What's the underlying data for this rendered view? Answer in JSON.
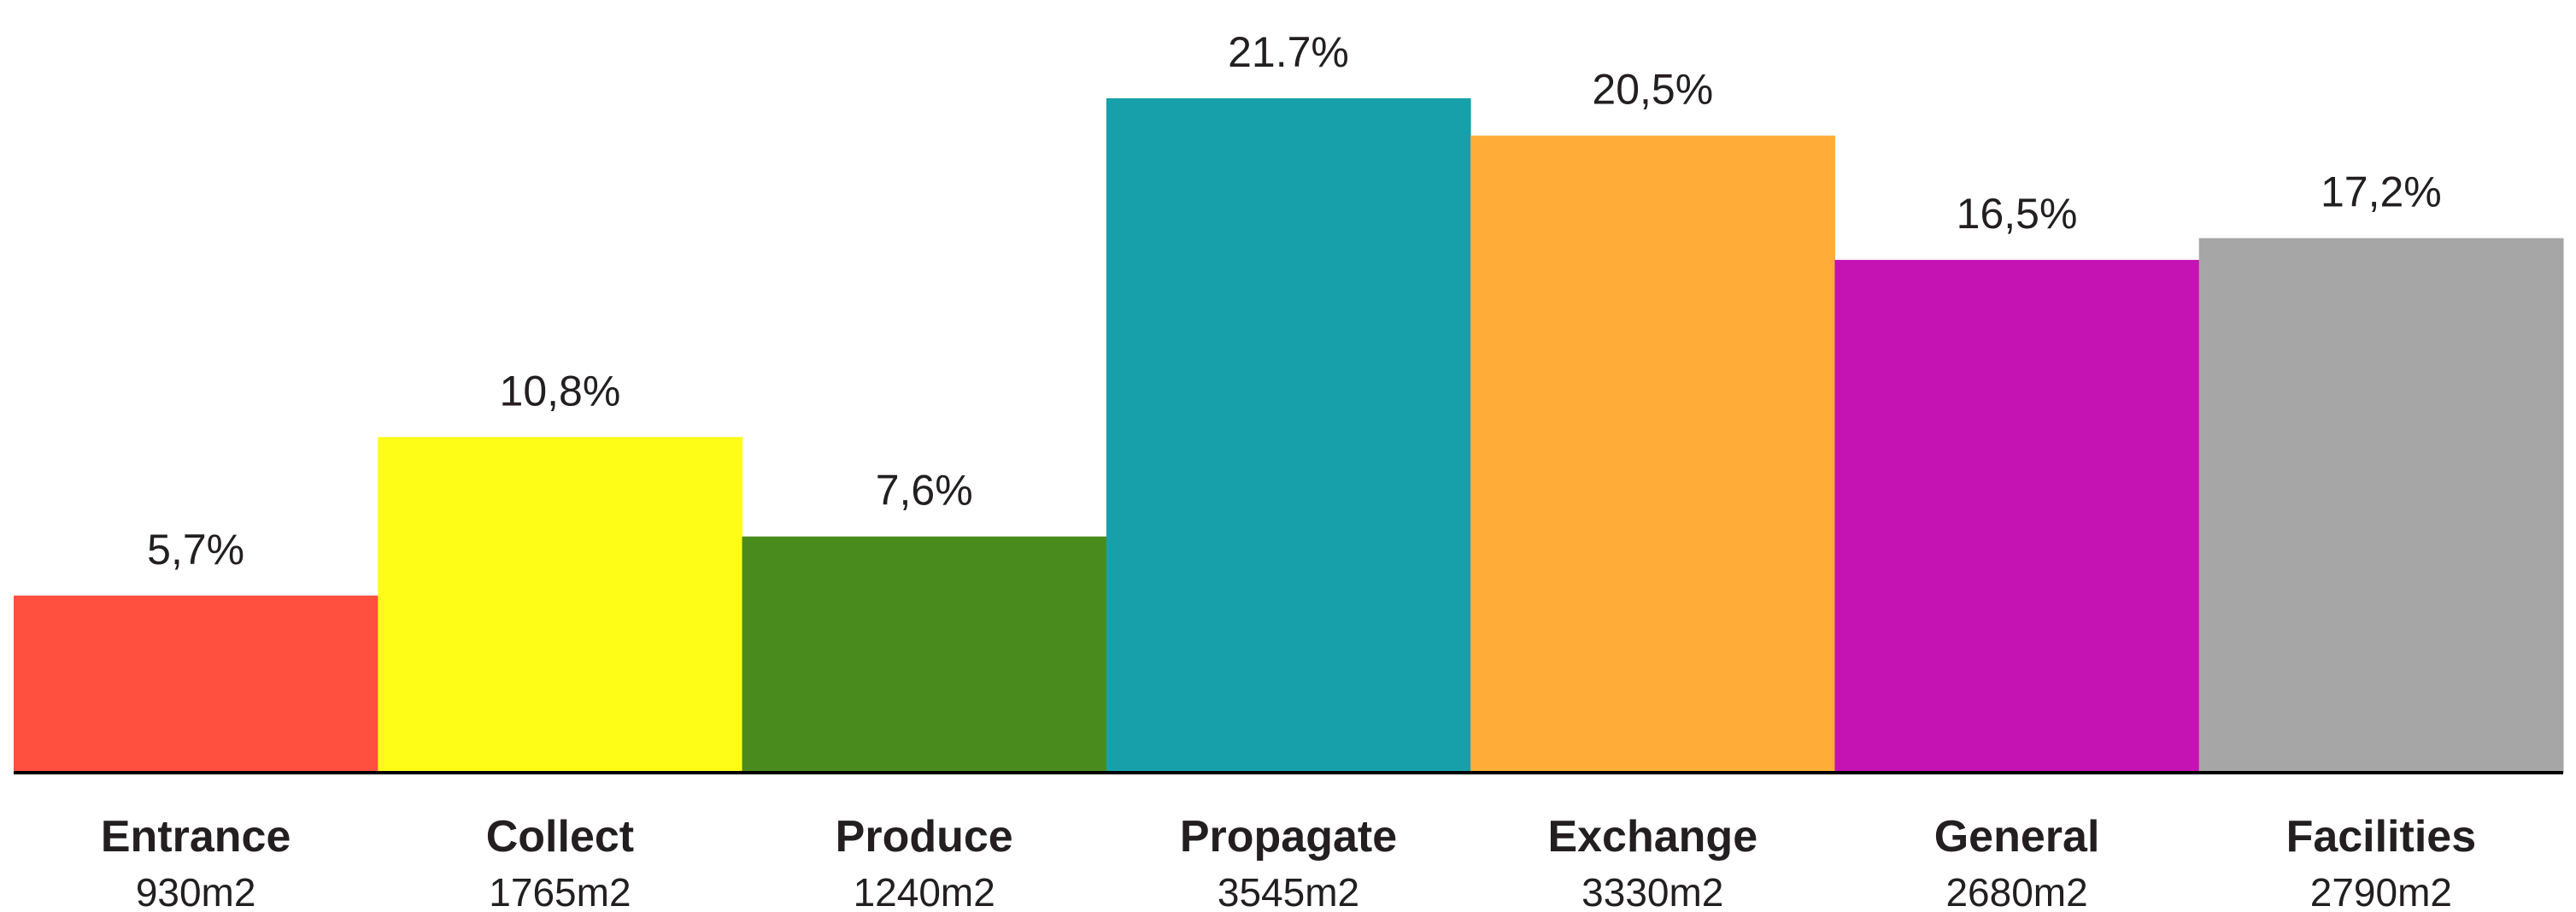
{
  "chart_data": {
    "type": "bar",
    "title": "",
    "xlabel": "",
    "ylabel": "",
    "unit": "%",
    "ylim": [
      0,
      21.7
    ],
    "grid": false,
    "legend": "none",
    "bars": [
      {
        "category": "Entrance",
        "area": "930m2",
        "value": 5.7,
        "value_label": "5,7%",
        "color": "#ff4f3f"
      },
      {
        "category": "Collect",
        "area": "1765m2",
        "value": 10.8,
        "value_label": "10,8%",
        "color": "#fdfd18"
      },
      {
        "category": "Produce",
        "area": "1240m2",
        "value": 7.6,
        "value_label": "7,6%",
        "color": "#4a8b1e"
      },
      {
        "category": "Propagate",
        "area": "3545m2",
        "value": 21.7,
        "value_label": "21.7%",
        "color": "#17a0aa"
      },
      {
        "category": "Exchange",
        "area": "3330m2",
        "value": 20.5,
        "value_label": "20,5%",
        "color": "#ffad38"
      },
      {
        "category": "General",
        "area": "2680m2",
        "value": 16.5,
        "value_label": "16,5%",
        "color": "#c412b3"
      },
      {
        "category": "Facilities",
        "area": "2790m2",
        "value": 17.2,
        "value_label": "17,2%",
        "color": "#a6a6a6"
      }
    ]
  }
}
